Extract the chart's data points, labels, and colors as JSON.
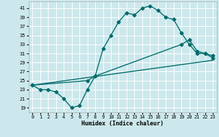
{
  "xlabel": "Humidex (Indice chaleur)",
  "bg_color": "#cce8ec",
  "grid_color": "#ffffff",
  "line_color": "#006b6b",
  "xlim": [
    -0.5,
    23.5
  ],
  "ylim": [
    18,
    42.5
  ],
  "yticks": [
    19,
    21,
    23,
    25,
    27,
    29,
    31,
    33,
    35,
    37,
    39,
    41
  ],
  "xticks": [
    0,
    1,
    2,
    3,
    4,
    5,
    6,
    7,
    8,
    9,
    10,
    11,
    12,
    13,
    14,
    15,
    16,
    17,
    18,
    19,
    20,
    21,
    22,
    23
  ],
  "line1_x": [
    0,
    1,
    2,
    3,
    4,
    5,
    6,
    7,
    8,
    9,
    10,
    11,
    12,
    13,
    14,
    15,
    16,
    17,
    18,
    19,
    20,
    21,
    22,
    23
  ],
  "line1_y": [
    24,
    23,
    23,
    22.5,
    21,
    19,
    19.5,
    23,
    26,
    32,
    35,
    38,
    40,
    39.5,
    41,
    41.5,
    40.5,
    39,
    38.5,
    35.5,
    33,
    31,
    31,
    30
  ],
  "line2_x": [
    0,
    7,
    8,
    19,
    20,
    21,
    22,
    23
  ],
  "line2_y": [
    24,
    25,
    26,
    33,
    34,
    31.5,
    31,
    30.5
  ],
  "line3_x": [
    0,
    23
  ],
  "line3_y": [
    24,
    29.5
  ],
  "marker": "D",
  "markersize": 2.5,
  "linewidth": 1.0
}
